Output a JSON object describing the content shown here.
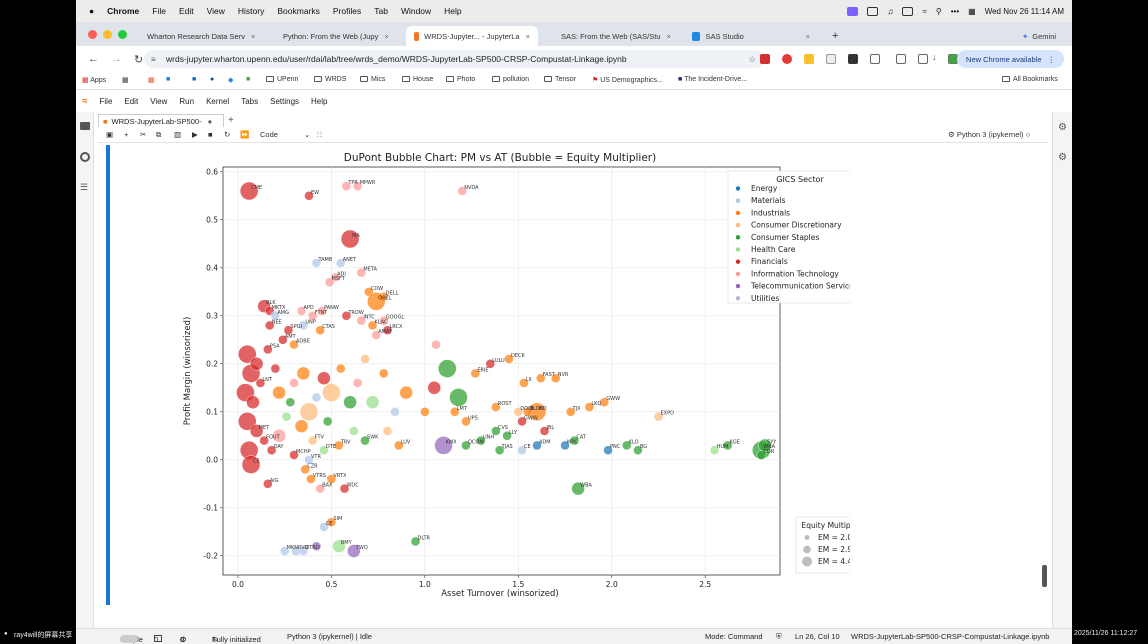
{
  "os_menubar": {
    "apple": "",
    "app": "Chrome",
    "items": [
      "File",
      "Edit",
      "View",
      "History",
      "Bookmarks",
      "Profiles",
      "Tab",
      "Window",
      "Help"
    ],
    "clock": "Wed Nov 26  11:14 AM"
  },
  "browser": {
    "tabs": [
      {
        "label": "Wharton Research Data Serv",
        "favicon_color": "#1f4e8c",
        "active": false
      },
      {
        "label": "Python: From the Web (Jupy",
        "favicon_color": "#1f4e8c",
        "active": false
      },
      {
        "label": "WRDS-Jupyter... - JupyterLa",
        "favicon_color": "#f37626",
        "active": true
      },
      {
        "label": "SAS: From the Web (SAS/Stu",
        "favicon_color": "#1f4e8c",
        "active": false
      },
      {
        "label": "SAS Studio",
        "favicon_color": "#1e88e5",
        "active": false
      }
    ],
    "gemini_label": "Gemini",
    "url": "wrds-jupyter.wharton.upenn.edu/user/rdai/lab/tree/wrds_demo/WRDS-JupyterLab-SP500-CRSP-Compustat-Linkage.ipynb",
    "update_button": "New Chrome available",
    "bookmarks": [
      "Apps",
      "UPenn",
      "WRDS",
      "Mics",
      "House",
      "Photo",
      "pollution",
      "Tensor",
      "US Demographics...",
      "The Incident-Drive..."
    ],
    "all_bookmarks": "All Bookmarks"
  },
  "jupyter": {
    "menu": [
      "File",
      "Edit",
      "View",
      "Run",
      "Kernel",
      "Tabs",
      "Settings",
      "Help"
    ],
    "doc_tab": "WRDS-JupyterLab-SP500-",
    "cell_type": "Code",
    "kernel": "Python 3 (ipykernel)"
  },
  "status": {
    "mode_label": "Simple",
    "counts_a": "0",
    "counts_b": "0",
    "initialized": "Fully initialized",
    "kernel": "Python 3 (ipykernel) | Idle",
    "mode": "Mode: Command",
    "position": "Ln 26, Col 10",
    "file": "WRDS-JupyterLab-SP500-CRSP-Compustat-Linkage.ipynb"
  },
  "overlays": {
    "left_bottom": "ray4will的屏幕共享",
    "right_bottom": "2025/11/26 11:12:27"
  },
  "chart_data": {
    "type": "scatter",
    "title": "DuPont Bubble Chart: PM vs AT (Bubble = Equity Multiplier)",
    "xlabel": "Asset Turnover (winsorized)",
    "ylabel": "Profit Margin (winsorized)",
    "xlim": [
      -0.08,
      2.9
    ],
    "ylim": [
      -0.24,
      0.61
    ],
    "xticks": [
      0.0,
      0.5,
      1.0,
      1.5,
      2.0,
      2.5
    ],
    "yticks": [
      -0.2,
      -0.1,
      0.0,
      0.1,
      0.2,
      0.3,
      0.4,
      0.5,
      0.6
    ],
    "grid": true,
    "legend_position": "upper-right",
    "legend_title": "GICS Sector",
    "sectors": [
      {
        "name": "Energy",
        "color": "#1f77b4"
      },
      {
        "name": "Materials",
        "color": "#aec7e8"
      },
      {
        "name": "Industrials",
        "color": "#ff7f0e"
      },
      {
        "name": "Consumer Discretionary",
        "color": "#ffbb78"
      },
      {
        "name": "Consumer Staples",
        "color": "#2ca02c"
      },
      {
        "name": "Health Care",
        "color": "#98df8a"
      },
      {
        "name": "Financials",
        "color": "#d62728"
      },
      {
        "name": "Information Technology",
        "color": "#ff9896"
      },
      {
        "name": "Telecommunication Services",
        "color": "#9467bd"
      },
      {
        "name": "Utilities",
        "color": "#c5b0d5"
      }
    ],
    "size_legend_title": "Equity Multiplier",
    "size_legend": [
      "EM = 2.0",
      "EM = 2.9",
      "EM = 4.4"
    ],
    "points": [
      {
        "x": 0.06,
        "y": 0.56,
        "em": 4.4,
        "s": 6,
        "label": "CME"
      },
      {
        "x": 0.38,
        "y": 0.55,
        "em": 2.0,
        "s": 6,
        "label": "EW"
      },
      {
        "x": 0.58,
        "y": 0.57,
        "em": 2.0,
        "s": 7,
        "label": "TPR"
      },
      {
        "x": 0.64,
        "y": 0.57,
        "em": 2.0,
        "s": 7,
        "label": "MPWR"
      },
      {
        "x": 1.2,
        "y": 0.56,
        "em": 2.0,
        "s": 7,
        "label": "NVDA"
      },
      {
        "x": 0.6,
        "y": 0.46,
        "em": 4.4,
        "s": 6,
        "label": "MA"
      },
      {
        "x": 0.42,
        "y": 0.41,
        "em": 2.0,
        "s": 1,
        "label": "TAMB"
      },
      {
        "x": 0.55,
        "y": 0.41,
        "em": 2.0,
        "s": 1,
        "label": "ANET"
      },
      {
        "x": 0.66,
        "y": 0.39,
        "em": 2.0,
        "s": 7,
        "label": "META"
      },
      {
        "x": 0.52,
        "y": 0.38,
        "em": 2.0,
        "s": 7,
        "label": "ADI"
      },
      {
        "x": 0.49,
        "y": 0.37,
        "em": 2.0,
        "s": 7,
        "label": "MSFT"
      },
      {
        "x": 0.7,
        "y": 0.35,
        "em": 2.0,
        "s": 2,
        "label": "CDW"
      },
      {
        "x": 0.78,
        "y": 0.34,
        "em": 2.0,
        "s": 2,
        "label": "DELL"
      },
      {
        "x": 0.74,
        "y": 0.33,
        "em": 4.4,
        "s": 2,
        "label": "ORCL"
      },
      {
        "x": 0.14,
        "y": 0.32,
        "em": 2.9,
        "s": 6,
        "label": "BLK"
      },
      {
        "x": 0.17,
        "y": 0.31,
        "em": 2.0,
        "s": 6,
        "label": "MKTX"
      },
      {
        "x": 0.34,
        "y": 0.31,
        "em": 2.0,
        "s": 7,
        "label": "APD"
      },
      {
        "x": 0.45,
        "y": 0.31,
        "em": 2.0,
        "s": 7,
        "label": "PANW"
      },
      {
        "x": 0.2,
        "y": 0.3,
        "em": 2.0,
        "s": 1,
        "label": "AMG"
      },
      {
        "x": 0.4,
        "y": 0.3,
        "em": 2.0,
        "s": 7,
        "label": "FTNT"
      },
      {
        "x": 0.58,
        "y": 0.3,
        "em": 2.0,
        "s": 6,
        "label": "TROW"
      },
      {
        "x": 0.66,
        "y": 0.29,
        "em": 2.0,
        "s": 7,
        "label": "INTC"
      },
      {
        "x": 0.78,
        "y": 0.29,
        "em": 2.0,
        "s": 7,
        "label": "GOOGL"
      },
      {
        "x": 0.17,
        "y": 0.28,
        "em": 2.0,
        "s": 6,
        "label": "NEE"
      },
      {
        "x": 0.35,
        "y": 0.28,
        "em": 2.0,
        "s": 1,
        "label": "UNP"
      },
      {
        "x": 0.72,
        "y": 0.28,
        "em": 2.0,
        "s": 2,
        "label": "KLAC"
      },
      {
        "x": 0.27,
        "y": 0.27,
        "em": 2.0,
        "s": 6,
        "label": "SPGI"
      },
      {
        "x": 0.44,
        "y": 0.27,
        "em": 2.0,
        "s": 2,
        "label": "CTAS"
      },
      {
        "x": 0.8,
        "y": 0.27,
        "em": 2.0,
        "s": 6,
        "label": "LRCX"
      },
      {
        "x": 0.74,
        "y": 0.26,
        "em": 2.0,
        "s": 7,
        "label": "AMAT"
      },
      {
        "x": 0.24,
        "y": 0.25,
        "em": 2.0,
        "s": 6,
        "label": "AMT"
      },
      {
        "x": 0.16,
        "y": 0.23,
        "em": 2.0,
        "s": 6,
        "label": "PSA"
      },
      {
        "x": 0.3,
        "y": 0.24,
        "em": 2.0,
        "s": 2,
        "label": "ADBE"
      },
      {
        "x": 0.05,
        "y": 0.22,
        "em": 4.4,
        "s": 6,
        "label": ""
      },
      {
        "x": 0.07,
        "y": 0.18,
        "em": 4.4,
        "s": 6,
        "label": ""
      },
      {
        "x": 0.1,
        "y": 0.2,
        "em": 2.9,
        "s": 6,
        "label": ""
      },
      {
        "x": 0.04,
        "y": 0.14,
        "em": 4.4,
        "s": 6,
        "label": ""
      },
      {
        "x": 0.08,
        "y": 0.12,
        "em": 2.9,
        "s": 6,
        "label": ""
      },
      {
        "x": 0.12,
        "y": 0.16,
        "em": 2.0,
        "s": 6,
        "label": "LNT"
      },
      {
        "x": 0.05,
        "y": 0.08,
        "em": 4.4,
        "s": 6,
        "label": ""
      },
      {
        "x": 0.1,
        "y": 0.06,
        "em": 2.9,
        "s": 6,
        "label": "MET"
      },
      {
        "x": 0.14,
        "y": 0.04,
        "em": 2.0,
        "s": 6,
        "label": "FOUT"
      },
      {
        "x": 0.06,
        "y": 0.02,
        "em": 4.4,
        "s": 6,
        "label": ""
      },
      {
        "x": 0.2,
        "y": 0.19,
        "em": 2.0,
        "s": 6,
        "label": ""
      },
      {
        "x": 0.22,
        "y": 0.14,
        "em": 2.9,
        "s": 2,
        "label": ""
      },
      {
        "x": 0.28,
        "y": 0.12,
        "em": 2.0,
        "s": 4,
        "label": ""
      },
      {
        "x": 0.3,
        "y": 0.16,
        "em": 2.0,
        "s": 7,
        "label": ""
      },
      {
        "x": 0.35,
        "y": 0.18,
        "em": 2.9,
        "s": 2,
        "label": ""
      },
      {
        "x": 0.38,
        "y": 0.1,
        "em": 4.4,
        "s": 3,
        "label": ""
      },
      {
        "x": 0.42,
        "y": 0.13,
        "em": 2.0,
        "s": 1,
        "label": ""
      },
      {
        "x": 0.46,
        "y": 0.17,
        "em": 2.9,
        "s": 6,
        "label": ""
      },
      {
        "x": 0.5,
        "y": 0.14,
        "em": 4.4,
        "s": 3,
        "label": ""
      },
      {
        "x": 0.55,
        "y": 0.19,
        "em": 2.0,
        "s": 2,
        "label": ""
      },
      {
        "x": 0.6,
        "y": 0.12,
        "em": 2.9,
        "s": 4,
        "label": ""
      },
      {
        "x": 0.64,
        "y": 0.16,
        "em": 2.0,
        "s": 7,
        "label": ""
      },
      {
        "x": 0.68,
        "y": 0.21,
        "em": 2.0,
        "s": 3,
        "label": ""
      },
      {
        "x": 0.72,
        "y": 0.12,
        "em": 2.9,
        "s": 5,
        "label": ""
      },
      {
        "x": 0.78,
        "y": 0.18,
        "em": 2.0,
        "s": 2,
        "label": ""
      },
      {
        "x": 0.84,
        "y": 0.1,
        "em": 2.0,
        "s": 1,
        "label": ""
      },
      {
        "x": 0.9,
        "y": 0.14,
        "em": 2.9,
        "s": 2,
        "label": ""
      },
      {
        "x": 1.06,
        "y": 0.24,
        "em": 2.0,
        "s": 7,
        "label": ""
      },
      {
        "x": 0.26,
        "y": 0.09,
        "em": 2.0,
        "s": 5,
        "label": ""
      },
      {
        "x": 0.34,
        "y": 0.07,
        "em": 2.9,
        "s": 2,
        "label": ""
      },
      {
        "x": 0.48,
        "y": 0.08,
        "em": 2.0,
        "s": 4,
        "label": ""
      },
      {
        "x": 0.62,
        "y": 0.06,
        "em": 2.0,
        "s": 5,
        "label": ""
      },
      {
        "x": 0.8,
        "y": 0.06,
        "em": 2.0,
        "s": 3,
        "label": ""
      },
      {
        "x": 0.22,
        "y": 0.05,
        "em": 2.9,
        "s": 7,
        "label": ""
      },
      {
        "x": 0.4,
        "y": 0.04,
        "em": 2.0,
        "s": 3,
        "label": "FTV"
      },
      {
        "x": 0.54,
        "y": 0.03,
        "em": 2.0,
        "s": 2,
        "label": "TRV"
      },
      {
        "x": 0.68,
        "y": 0.04,
        "em": 2.0,
        "s": 4,
        "label": "SWK"
      },
      {
        "x": 0.86,
        "y": 0.03,
        "em": 2.0,
        "s": 2,
        "label": "LUV"
      },
      {
        "x": 0.18,
        "y": 0.02,
        "em": 2.0,
        "s": 6,
        "label": "DAY"
      },
      {
        "x": 0.3,
        "y": 0.01,
        "em": 2.0,
        "s": 6,
        "label": "MCHP"
      },
      {
        "x": 0.38,
        "y": 0.0,
        "em": 2.0,
        "s": 1,
        "label": "VTR"
      },
      {
        "x": 0.46,
        "y": 0.02,
        "em": 2.0,
        "s": 5,
        "label": "DTE"
      },
      {
        "x": 0.36,
        "y": -0.02,
        "em": 2.0,
        "s": 2,
        "label": "CZR"
      },
      {
        "x": 0.39,
        "y": -0.04,
        "em": 2.0,
        "s": 2,
        "label": "VTRS"
      },
      {
        "x": 0.5,
        "y": -0.04,
        "em": 2.0,
        "s": 2,
        "label": "VRTX"
      },
      {
        "x": 0.44,
        "y": -0.06,
        "em": 2.0,
        "s": 7,
        "label": "BAX"
      },
      {
        "x": 0.57,
        "y": -0.06,
        "em": 2.0,
        "s": 6,
        "label": "WDC"
      },
      {
        "x": 0.07,
        "y": -0.01,
        "em": 4.4,
        "s": 6,
        "label": "CE"
      },
      {
        "x": 0.16,
        "y": -0.05,
        "em": 2.0,
        "s": 6,
        "label": "AIG"
      },
      {
        "x": 1.12,
        "y": 0.19,
        "em": 4.4,
        "s": 4,
        "label": ""
      },
      {
        "x": 1.05,
        "y": 0.15,
        "em": 2.9,
        "s": 6,
        "label": ""
      },
      {
        "x": 1.18,
        "y": 0.13,
        "em": 4.4,
        "s": 4,
        "label": ""
      },
      {
        "x": 1.0,
        "y": 0.1,
        "em": 2.0,
        "s": 2,
        "label": ""
      },
      {
        "x": 1.16,
        "y": 0.1,
        "em": 2.0,
        "s": 2,
        "label": "LMT"
      },
      {
        "x": 1.22,
        "y": 0.08,
        "em": 2.0,
        "s": 2,
        "label": "UPS"
      },
      {
        "x": 1.27,
        "y": 0.18,
        "em": 2.0,
        "s": 2,
        "label": "ERIE"
      },
      {
        "x": 1.35,
        "y": 0.2,
        "em": 2.0,
        "s": 6,
        "label": "LULU"
      },
      {
        "x": 1.45,
        "y": 0.21,
        "em": 2.0,
        "s": 2,
        "label": "DECK"
      },
      {
        "x": 1.53,
        "y": 0.16,
        "em": 2.0,
        "s": 2,
        "label": "LII"
      },
      {
        "x": 1.62,
        "y": 0.17,
        "em": 2.0,
        "s": 2,
        "label": "FAST"
      },
      {
        "x": 1.7,
        "y": 0.17,
        "em": 2.0,
        "s": 2,
        "label": "NVR"
      },
      {
        "x": 1.38,
        "y": 0.11,
        "em": 2.0,
        "s": 2,
        "label": "ROST"
      },
      {
        "x": 1.6,
        "y": 0.1,
        "em": 4.4,
        "s": 2,
        "label": "HD"
      },
      {
        "x": 1.55,
        "y": 0.1,
        "em": 2.0,
        "s": 2,
        "label": "BLDR"
      },
      {
        "x": 1.5,
        "y": 0.1,
        "em": 2.0,
        "s": 3,
        "label": "DOOL"
      },
      {
        "x": 1.52,
        "y": 0.08,
        "em": 2.0,
        "s": 6,
        "label": "GWW"
      },
      {
        "x": 1.64,
        "y": 0.06,
        "em": 2.0,
        "s": 6,
        "label": "JBL"
      },
      {
        "x": 1.78,
        "y": 0.1,
        "em": 2.0,
        "s": 2,
        "label": "TJX"
      },
      {
        "x": 1.88,
        "y": 0.11,
        "em": 2.0,
        "s": 2,
        "label": "LKQ"
      },
      {
        "x": 1.96,
        "y": 0.12,
        "em": 2.0,
        "s": 2,
        "label": "GWW"
      },
      {
        "x": 2.25,
        "y": 0.09,
        "em": 2.0,
        "s": 3,
        "label": "EXPD"
      },
      {
        "x": 1.38,
        "y": 0.06,
        "em": 2.0,
        "s": 4,
        "label": "CVS"
      },
      {
        "x": 1.44,
        "y": 0.05,
        "em": 2.0,
        "s": 4,
        "label": "LLY"
      },
      {
        "x": 1.3,
        "y": 0.04,
        "em": 2.0,
        "s": 4,
        "label": "UNH"
      },
      {
        "x": 1.22,
        "y": 0.03,
        "em": 2.0,
        "s": 4,
        "label": "QCOM"
      },
      {
        "x": 1.1,
        "y": 0.03,
        "em": 4.4,
        "s": 8,
        "label": "KMX"
      },
      {
        "x": 1.4,
        "y": 0.02,
        "em": 2.0,
        "s": 4,
        "label": "TJAS"
      },
      {
        "x": 1.52,
        "y": 0.02,
        "em": 2.0,
        "s": 1,
        "label": "CE"
      },
      {
        "x": 1.6,
        "y": 0.03,
        "em": 2.0,
        "s": 0,
        "label": "ADM"
      },
      {
        "x": 1.8,
        "y": 0.04,
        "em": 2.0,
        "s": 4,
        "label": "CAT"
      },
      {
        "x": 1.75,
        "y": 0.03,
        "em": 2.0,
        "s": 0,
        "label": "MPC"
      },
      {
        "x": 1.98,
        "y": 0.02,
        "em": 2.0,
        "s": 0,
        "label": "PNC"
      },
      {
        "x": 2.08,
        "y": 0.03,
        "em": 2.0,
        "s": 4,
        "label": "KLO"
      },
      {
        "x": 2.14,
        "y": 0.02,
        "em": 2.0,
        "s": 4,
        "label": "BG"
      },
      {
        "x": 2.55,
        "y": 0.02,
        "em": 2.0,
        "s": 5,
        "label": "HUM"
      },
      {
        "x": 2.62,
        "y": 0.03,
        "em": 2.0,
        "s": 4,
        "label": "KGE"
      },
      {
        "x": 2.8,
        "y": 0.02,
        "em": 4.4,
        "s": 4,
        "label": "WBA"
      },
      {
        "x": 2.82,
        "y": 0.03,
        "em": 2.9,
        "s": 4,
        "label": "SYY"
      },
      {
        "x": 2.8,
        "y": 0.01,
        "em": 2.0,
        "s": 4,
        "label": "COR"
      },
      {
        "x": 1.82,
        "y": -0.06,
        "em": 2.9,
        "s": 4,
        "label": "WBA"
      },
      {
        "x": 0.46,
        "y": -0.14,
        "em": 2.0,
        "s": 1,
        "label": "CE"
      },
      {
        "x": 0.5,
        "y": -0.13,
        "em": 2.0,
        "s": 2,
        "label": "SIM"
      },
      {
        "x": 0.54,
        "y": -0.18,
        "em": 2.9,
        "s": 5,
        "label": "BMY"
      },
      {
        "x": 0.62,
        "y": -0.19,
        "em": 2.9,
        "s": 8,
        "label": "TWO"
      },
      {
        "x": 0.95,
        "y": -0.17,
        "em": 2.0,
        "s": 4,
        "label": "DLTR"
      },
      {
        "x": 0.25,
        "y": -0.19,
        "em": 2.0,
        "s": 1,
        "label": "MKN"
      },
      {
        "x": 0.31,
        "y": -0.19,
        "em": 2.0,
        "s": 1,
        "label": "RVO"
      },
      {
        "x": 0.35,
        "y": -0.19,
        "em": 2.0,
        "s": 1,
        "label": "OTRD"
      },
      {
        "x": 0.42,
        "y": -0.18,
        "em": 2.0,
        "s": 8,
        "label": ""
      }
    ]
  }
}
